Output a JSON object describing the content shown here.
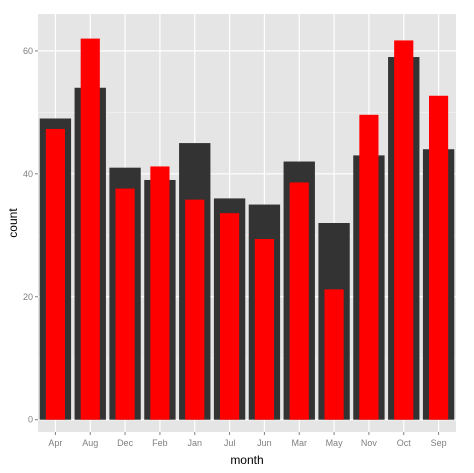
{
  "chart_data": {
    "type": "bar",
    "xlabel": "month",
    "ylabel": "count",
    "ylim": [
      -2,
      66
    ],
    "y_ticks": [
      0,
      20,
      40,
      60
    ],
    "categories": [
      "Apr",
      "Aug",
      "Dec",
      "Feb",
      "Jan",
      "Jul",
      "Jun",
      "Mar",
      "May",
      "Nov",
      "Oct",
      "Sep"
    ],
    "series": [
      {
        "values": [
          49,
          54,
          41,
          39,
          45,
          36,
          35,
          42,
          32,
          43,
          59,
          44
        ]
      },
      {
        "values": [
          47.3,
          62,
          37.6,
          41.2,
          35.8,
          33.6,
          29.4,
          38.6,
          21.2,
          49.6,
          61.7,
          52.7
        ]
      }
    ],
    "colors": {
      "series1": "#333333",
      "series2": "#ff0000",
      "panel": "#e5e5e5",
      "grid_major": "#ffffff",
      "grid_minor": "#f2f2f2"
    },
    "grid": true,
    "legend": "none"
  }
}
